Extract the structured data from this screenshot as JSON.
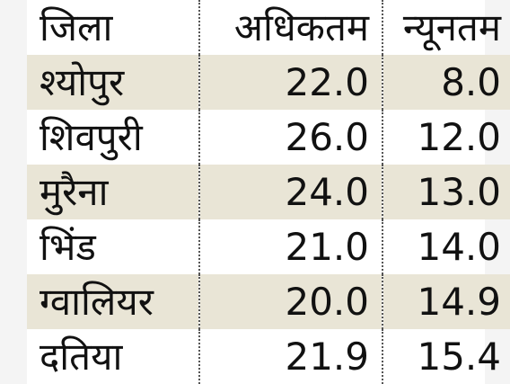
{
  "table": {
    "header": [
      "जिला",
      "अधिकतम",
      "न्यूनतम"
    ],
    "rows": [
      [
        "श्योपुर",
        "22.0",
        "8.0"
      ],
      [
        "शिवपुरी",
        "26.0",
        "12.0"
      ],
      [
        "मुरैना",
        "24.0",
        "13.0"
      ],
      [
        "भिंड",
        "21.0",
        "14.0"
      ],
      [
        "ग्वालियर",
        "20.0",
        "14.9"
      ],
      [
        "दतिया",
        "21.9",
        "15.4"
      ]
    ]
  }
}
